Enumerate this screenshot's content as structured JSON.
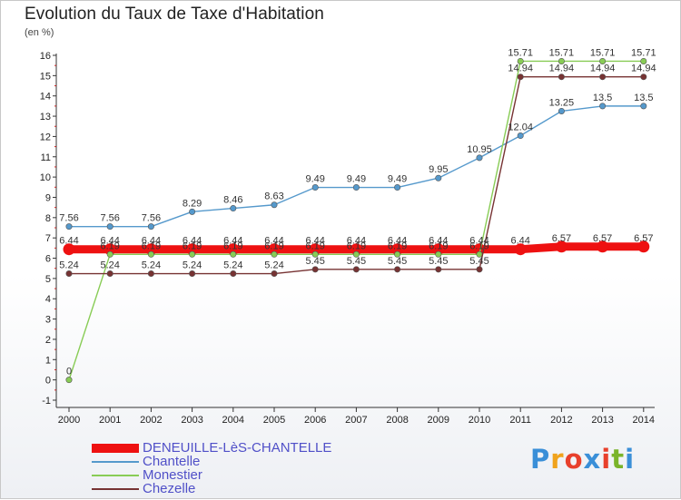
{
  "title": "Evolution du Taux de Taxe d'Habitation",
  "subtitle": "(en %)",
  "logo": {
    "text": "Proxiti",
    "colors": [
      "#3a8fd8",
      "#f0a31c",
      "#e8402c",
      "#3a8fd8",
      "#e8402c",
      "#7ab42a",
      "#3a8fd8"
    ]
  },
  "chart_data": {
    "type": "line",
    "categories": [
      "2000",
      "2001",
      "2002",
      "2003",
      "2004",
      "2005",
      "2006",
      "2007",
      "2008",
      "2009",
      "2010",
      "2011",
      "2012",
      "2013",
      "2014"
    ],
    "ylim": [
      -1,
      16
    ],
    "yticks": [
      -1,
      0,
      1,
      2,
      3,
      4,
      5,
      6,
      7,
      8,
      9,
      10,
      11,
      12,
      13,
      14,
      15,
      16
    ],
    "grid": false,
    "legend_position": "bottom-left",
    "series": [
      {
        "name": "DENEUILLE-LèS-CHANTELLE",
        "color": "#ee1111",
        "values": [
          6.44,
          6.44,
          6.44,
          6.44,
          6.44,
          6.44,
          6.44,
          6.44,
          6.44,
          6.44,
          6.44,
          6.44,
          6.57,
          6.57,
          6.57
        ],
        "labels": [
          "6.44",
          "6.44",
          "6.44",
          "6.44",
          "6.44",
          "6.44",
          "6.44",
          "6.44",
          "6.44",
          "6.44",
          "6.44",
          "6.44",
          "6.57",
          "6.57",
          "6.57"
        ]
      },
      {
        "name": "Chantelle",
        "color": "#5599cc",
        "values": [
          7.56,
          7.56,
          7.56,
          8.29,
          8.46,
          8.63,
          9.49,
          9.49,
          9.49,
          9.95,
          10.95,
          12.04,
          13.25,
          13.5,
          13.5
        ],
        "labels": [
          "7.56",
          "7.56",
          "7.56",
          "8.29",
          "8.46",
          "8.63",
          "9.49",
          "9.49",
          "9.49",
          "9.95",
          "10.95",
          "12.04",
          "13.25",
          "13.5",
          "13.5"
        ]
      },
      {
        "name": "Monestier",
        "color": "#88cc55",
        "values": [
          0,
          6.19,
          6.19,
          6.19,
          6.19,
          6.19,
          6.19,
          6.19,
          6.19,
          6.19,
          6.19,
          15.71,
          15.71,
          15.71,
          15.71
        ],
        "labels": [
          "0",
          "6.19",
          "6.19",
          "6.19",
          "6.19",
          "6.19",
          "6.19",
          "6.19",
          "6.19",
          "6.19",
          "6.19",
          "15.71",
          "15.71",
          "15.71",
          "15.71"
        ]
      },
      {
        "name": "Chezelle",
        "color": "#773333",
        "values": [
          5.24,
          5.24,
          5.24,
          5.24,
          5.24,
          5.24,
          5.45,
          5.45,
          5.45,
          5.45,
          5.45,
          14.94,
          14.94,
          14.94,
          14.94
        ],
        "labels": [
          "5.24",
          "5.24",
          "5.24",
          "5.24",
          "5.24",
          "5.24",
          "5.45",
          "5.45",
          "5.45",
          "5.45",
          "5.45",
          "14.94",
          "14.94",
          "14.94",
          "14.94"
        ]
      }
    ]
  }
}
